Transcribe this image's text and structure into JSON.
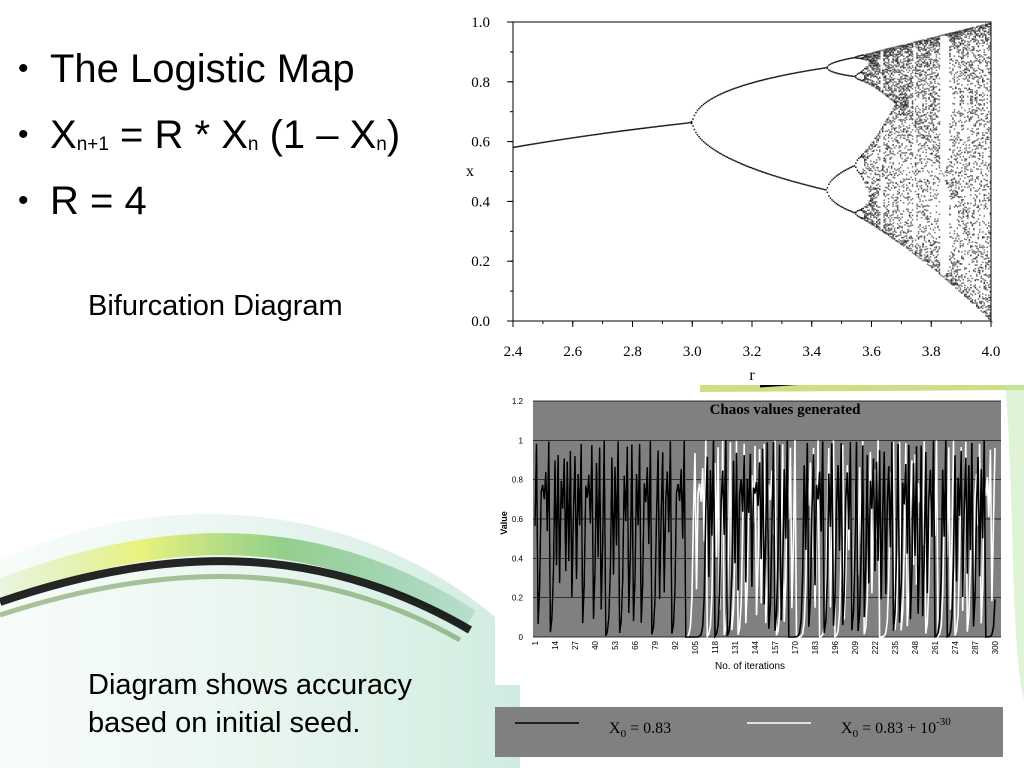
{
  "slide": {
    "bullets": [
      {
        "text": "The Logistic Map"
      },
      {
        "text": "X",
        "sub1": "n+1",
        "mid": " = R * X",
        "sub2": "n",
        "mid2": " (1 – X",
        "sub3": "n",
        "end": ")"
      },
      {
        "text": "R = 4"
      }
    ],
    "caption_bifurcation": "Bifurcation Diagram",
    "caption_accuracy": "Diagram shows accuracy based on initial seed.",
    "bullet_glyph": "•"
  },
  "chart_data": [
    {
      "type": "scatter",
      "title": "",
      "xlabel": "r",
      "ylabel": "x",
      "xlim": [
        2.4,
        4.0
      ],
      "ylim": [
        0.0,
        1.0
      ],
      "xticks": [
        "2.4",
        "2.6",
        "2.8",
        "3.0",
        "3.2",
        "3.4",
        "3.6",
        "3.8",
        "4.0"
      ],
      "yticks": [
        "0.0",
        "0.2",
        "0.4",
        "0.6",
        "0.8",
        "1.0"
      ],
      "grid": false,
      "legend": "none",
      "color": "#000000",
      "series": [
        {
          "values_fixed_point": [
            [
              2.4,
              0.583
            ],
            [
              2.6,
              0.615
            ],
            [
              2.8,
              0.643
            ],
            [
              3.0,
              0.667
            ]
          ]
        },
        {
          "values_period2_upper": [
            [
              3.2,
              0.799
            ],
            [
              3.4,
              0.842
            ]
          ]
        },
        {
          "values_period2_lower": [
            [
              3.2,
              0.513
            ],
            [
              3.4,
              0.452
            ]
          ]
        },
        {
          "values_chaos_envelope": [
            [
              3.57,
              0.89
            ],
            [
              4.0,
              1.0
            ]
          ]
        }
      ]
    },
    {
      "type": "line",
      "title": "Chaos values generated",
      "xlabel": "No. of iterations",
      "ylabel": "Value",
      "ylim": [
        0,
        1.2
      ],
      "yticks": [
        "0",
        "0.2",
        "0.4",
        "0.6",
        "0.8",
        "1",
        "1.2"
      ],
      "xticks": [
        "1",
        "14",
        "27",
        "40",
        "53",
        "66",
        "79",
        "92",
        "105",
        "118",
        "131",
        "144",
        "157",
        "170",
        "183",
        "196",
        "209",
        "222",
        "235",
        "248",
        "261",
        "274",
        "287",
        "300"
      ],
      "grid": true,
      "background": "#808080",
      "legend": "bottom",
      "x_range": [
        1,
        300
      ],
      "series": [
        {
          "name": "X0 = 0.83",
          "seed": 0.83,
          "color": "#000000",
          "legend_text": "X",
          "legend_sub": "0",
          "legend_rest": " = 0.83"
        },
        {
          "name": "X0 = 0.83 + 10^-30",
          "seed": 0.83,
          "divergence_iteration": 100,
          "color": "#ffffff",
          "legend_text": "X",
          "legend_sub": "0",
          "legend_rest": " = 0.83 + 10",
          "legend_sup": "-30"
        }
      ],
      "r": 4
    }
  ]
}
